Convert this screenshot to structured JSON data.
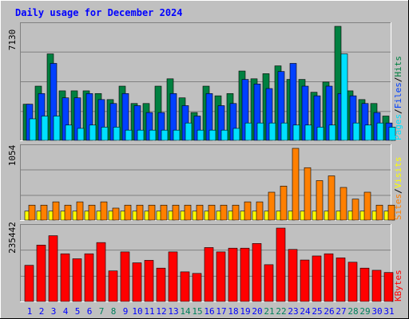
{
  "chart_data": [
    {
      "type": "bar",
      "title": "Daily usage for December 2024",
      "categories": [
        "1",
        "2",
        "3",
        "4",
        "5",
        "6",
        "7",
        "8",
        "9",
        "10",
        "11",
        "12",
        "13",
        "14",
        "15",
        "16",
        "17",
        "18",
        "19",
        "20",
        "21",
        "22",
        "23",
        "24",
        "25",
        "26",
        "27",
        "28",
        "29",
        "30",
        "31"
      ],
      "weekend_days": [
        "7",
        "8",
        "14",
        "15",
        "21",
        "22",
        "28",
        "29"
      ],
      "ymax_label": "7130",
      "ylim": [
        0,
        7130
      ],
      "series": [
        {
          "name": "Hits",
          "color": "#008040",
          "values": [
            2261,
            3390,
            5407,
            3096,
            3096,
            3096,
            2928,
            2550,
            3390,
            2305,
            2305,
            3390,
            3849,
            2659,
            1740,
            3390,
            2786,
            2928,
            4336,
            3849,
            4169,
            4658,
            3810,
            3810,
            3008,
            3646,
            7130,
            3096,
            2550,
            2305,
            1521
          ]
        },
        {
          "name": "Files",
          "color": "#0040ff",
          "values": [
            2261,
            2928,
            4813,
            2659,
            2659,
            2928,
            2550,
            2305,
            2928,
            2171,
            1740,
            1740,
            2928,
            2171,
            1521,
            2928,
            2171,
            2305,
            3810,
            3526,
            3240,
            4307,
            4813,
            3390,
            2786,
            3390,
            2928,
            2786,
            2305,
            1740,
            1087
          ]
        },
        {
          "name": "Pages",
          "color": "#00e0ff",
          "values": [
            1348,
            1521,
            1521,
            958,
            750,
            958,
            830,
            830,
            640,
            640,
            640,
            640,
            640,
            1087,
            640,
            640,
            640,
            750,
            1087,
            1087,
            1087,
            1087,
            958,
            958,
            830,
            958,
            5407,
            1087,
            958,
            1087,
            830
          ]
        }
      ]
    },
    {
      "type": "bar",
      "ymax_label": "1054",
      "ylim": [
        0,
        1054
      ],
      "series": [
        {
          "name": "Visits",
          "color": "#ffff00",
          "values": [
            132,
            132,
            132,
            132,
            132,
            132,
            132,
            132,
            132,
            132,
            132,
            132,
            132,
            132,
            132,
            132,
            132,
            132,
            132,
            132,
            132,
            132,
            132,
            132,
            132,
            132,
            132,
            132,
            132,
            132,
            132
          ]
        },
        {
          "name": "Sites",
          "color": "#ff8000",
          "values": [
            220,
            220,
            268,
            220,
            268,
            220,
            268,
            176,
            220,
            220,
            220,
            220,
            220,
            220,
            220,
            220,
            220,
            220,
            268,
            268,
            410,
            500,
            1054,
            770,
            580,
            650,
            480,
            308,
            410,
            220,
            220
          ]
        }
      ]
    },
    {
      "type": "bar",
      "ymax_label": "235442",
      "ylim": [
        0,
        235442
      ],
      "series": [
        {
          "name": "KBytes",
          "color": "#ff0000",
          "values": [
            116000,
            181000,
            211000,
            153000,
            137000,
            153000,
            189000,
            98000,
            159000,
            124000,
            132000,
            107000,
            159000,
            95000,
            90000,
            173000,
            159000,
            171000,
            171000,
            186000,
            118000,
            235442,
            167000,
            133000,
            146000,
            153000,
            140000,
            126000,
            107000,
            100000,
            93000
          ]
        }
      ]
    }
  ],
  "legend": {
    "top": {
      "hits": "Hits",
      "files": "Files",
      "pages": "Pages",
      "sep": "/"
    },
    "mid": {
      "visits": "Visits",
      "sites": "Sites",
      "sep": "/"
    },
    "bottom": {
      "kbytes": "KBytes"
    }
  },
  "colors": {
    "background": "#c0c0c0",
    "title": "#0000ff",
    "weekday_label": "#0000ff",
    "weekend_label": "#00805c",
    "bar_outline": "#000000"
  }
}
